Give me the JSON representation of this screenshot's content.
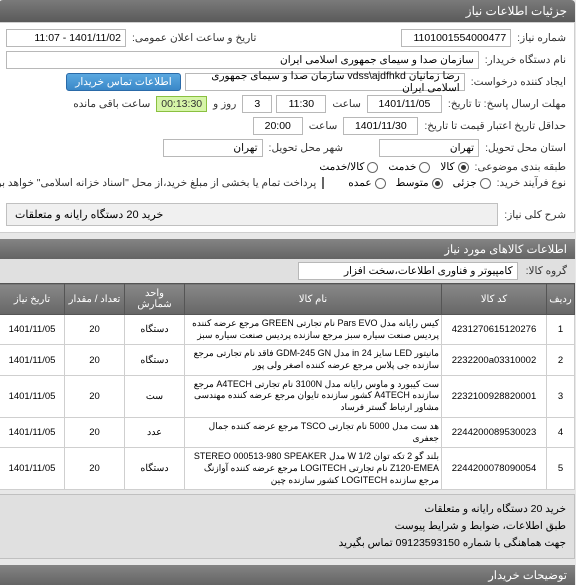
{
  "header": {
    "title": "جزئیات اطلاعات نیاز"
  },
  "form": {
    "need_no_label": "شماره نیاز:",
    "need_no": "1101001554000477",
    "announce_label": "تاریخ و ساعت اعلان عمومی:",
    "announce_val": "1401/11/02 - 11:07",
    "buyer_label": "نام دستگاه خریدار:",
    "buyer_val": "سازمان صدا و سیمای جمهوری اسلامی ایران",
    "requester_label": "ایجاد کننده درخواست:",
    "requester_val": "رضا زمانیان vdss\\ajdfhkd سازمان صدا و سیمای جمهوری اسلامی ایران",
    "contact_btn": "اطلاعات تماس خریدار",
    "reply_label": "مهلت ارسال پاسخ: تا تاریخ:",
    "reply_date": "1401/11/05",
    "time_lbl": "ساعت",
    "reply_time": "11:30",
    "days_count": "3",
    "days_lbl": "روز و",
    "timer_val": "00:13:30",
    "timer_lbl": "ساعت باقی مانده",
    "deadline_label": "حداقل تاریخ اعتبار قیمت تا تاریخ:",
    "deadline_date": "1401/11/30",
    "deadline_time": "20:00",
    "loc_label": "استان محل تحویل:",
    "loc_province": "تهران",
    "city_label": "شهر محل تحویل:",
    "city_val": "تهران",
    "group_label": "طبقه بندی موضوعی:",
    "group_opts": {
      "goods": "کالا",
      "service": "خدمت",
      "both": "کالا/خدمت"
    },
    "purchase_label": "نوع فرآیند خرید:",
    "purchase_opts": {
      "small": "جزئی",
      "medium": "متوسط",
      "large": "عمده"
    },
    "note_check": "پرداخت تمام یا بخشی از مبلغ خرید،از محل \"اسناد خزانه اسلامی\" خواهد بود.",
    "summary_label": "شرح کلی نیاز:",
    "summary_val": "خرید 20 دستگاه رایانه و متعلقات"
  },
  "sectionTitle": "اطلاعات کالاهای مورد نیاز",
  "groupRow": {
    "label": "گروه کالا:",
    "value": "کامپیوتر و فناوری اطلاعات،سخت افزار"
  },
  "table": {
    "headers": [
      "ردیف",
      "کد کالا",
      "نام کالا",
      "واحد شمارش",
      "تعداد / مقدار",
      "تاریخ نیاز"
    ],
    "rows": [
      {
        "n": "1",
        "code": "4231270615120276",
        "desc": "کیس رایانه مدل Pars EVO نام تجارتی GREEN مرجع عرضه کننده پردیس صنعت سیاره سبز مرجع سازنده پردیس صنعت سیاره سبز",
        "unit": "دستگاه",
        "qty": "20",
        "date": "1401/11/05"
      },
      {
        "n": "2",
        "code": "2232200a03310002",
        "desc": "مانیتور LED سایز 24 in مدل GDM-245 GN فاقد نام تجارتی مرجع سازنده جی پلاس مرجع عرضه کننده اصغر ولی پور",
        "unit": "دستگاه",
        "qty": "20",
        "date": "1401/11/05"
      },
      {
        "n": "3",
        "code": "2232100928820001",
        "desc": "ست کیبورد و ماوس رایانه مدل 3100N نام تجارتی A4TECH مرجع سازنده A4TECH کشور سازنده تایوان مرجع عرضه کننده مهندسی مشاور ارتباط گستر فرساد",
        "unit": "ست",
        "qty": "20",
        "date": "1401/11/05"
      },
      {
        "n": "4",
        "code": "2244200089530023",
        "desc": "هد ست مدل 5000 نام تجارتی TSCO مرجع عرضه کننده جمال جعفری",
        "unit": "عدد",
        "qty": "20",
        "date": "1401/11/05"
      },
      {
        "n": "5",
        "code": "2244200078090054",
        "desc": "بلند گو 2 تکه توان W 1/2 مدل STEREO 000513-980 SPEAKER Z120-EMEA نام تجارتی LOGITECH مرجع عرضه کننده آوازنگ مرجع سازنده LOGITECH کشور سازنده چین",
        "unit": "دستگاه",
        "qty": "20",
        "date": "1401/11/05"
      }
    ]
  },
  "bottom": {
    "l1": "خرید 20 دستگاه رایانه و متعلقات",
    "l2": "طبق اطلاعات، ضوابط و شرایط پیوست",
    "l3_prefix": "جهت هماهنگی با شماره",
    "l3_num": "09123593150",
    "l3_suffix": "تماس بگیرید"
  }
}
